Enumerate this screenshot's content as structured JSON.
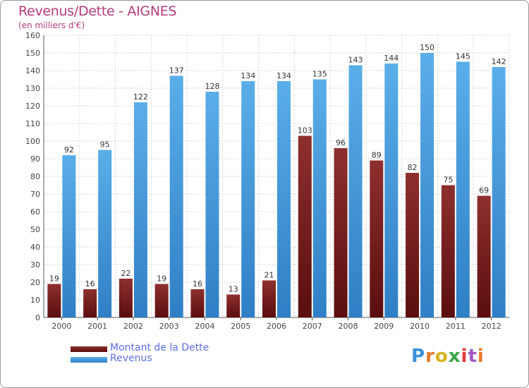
{
  "chart_data": {
    "type": "bar",
    "title": "Revenus/Dette - AIGNES",
    "subtitle": "(en milliers d'€)",
    "categories": [
      "2000",
      "2001",
      "2002",
      "2003",
      "2004",
      "2005",
      "2006",
      "2007",
      "2008",
      "2009",
      "2010",
      "2011",
      "2012"
    ],
    "series": [
      {
        "name": "Montant de la Dette",
        "color": "#7a1d1d",
        "values": [
          19,
          16,
          22,
          19,
          16,
          13,
          21,
          103,
          96,
          89,
          82,
          75,
          69
        ]
      },
      {
        "name": "Revenus",
        "color": "#4ca3e0",
        "values": [
          92,
          95,
          122,
          137,
          128,
          134,
          134,
          135,
          143,
          144,
          150,
          145,
          142
        ]
      }
    ],
    "ylim": [
      0,
      160
    ],
    "yticks": [
      0,
      10,
      20,
      30,
      40,
      50,
      60,
      70,
      80,
      90,
      100,
      110,
      120,
      130,
      140,
      150,
      160
    ],
    "grid": true,
    "legend_position": "bottom-left"
  },
  "branding": {
    "logo": "Proxiti"
  }
}
